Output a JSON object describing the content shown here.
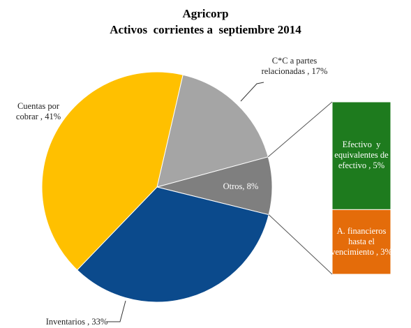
{
  "chart_data": {
    "type": "pie",
    "title": "Agricorp",
    "subtitle": "Activos  corrientes a  septiembre 2014",
    "categories": [
      "C*C a partes relacionadas ,",
      "Otros,",
      "Inventarios ,",
      "Cuentas por cobrar ,"
    ],
    "values": [
      17,
      8,
      33,
      41
    ],
    "value_labels": [
      "17%",
      "8%",
      "33%",
      "41%"
    ],
    "colors": [
      "#a5a5a5",
      "#7f7f7f",
      "#0b4a8c",
      "#ffc000"
    ],
    "bar": {
      "categories": [
        "Efectivo  y equivalentes de efectivo ,",
        "A. financieros hasta el vencimiento ,"
      ],
      "values": [
        5,
        3
      ],
      "value_labels": [
        "5%",
        "3%"
      ],
      "colors": [
        "#1e7b1e",
        "#e46c0a"
      ]
    }
  }
}
